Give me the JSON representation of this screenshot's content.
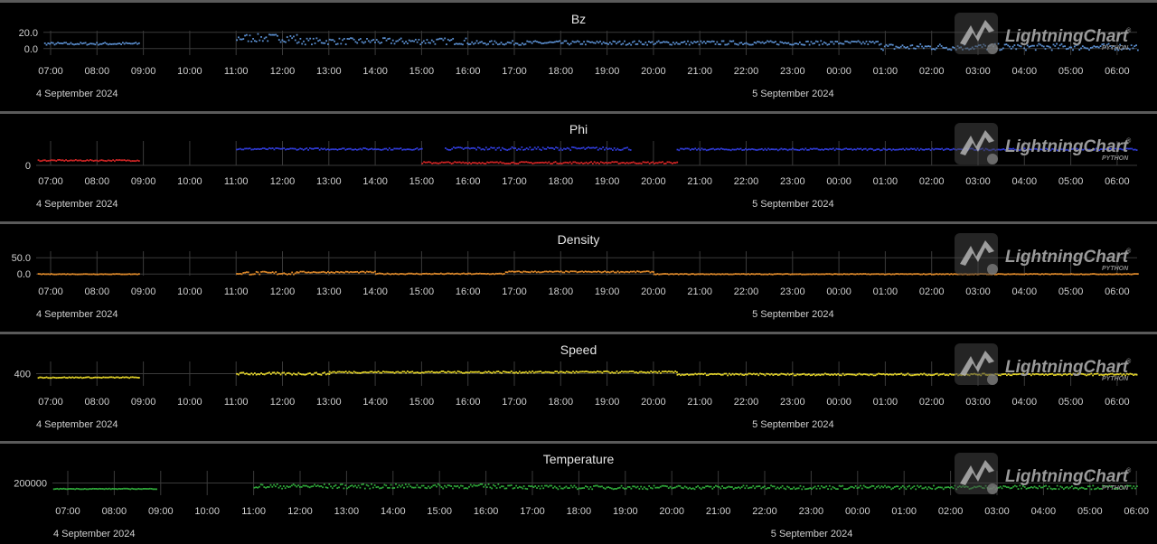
{
  "watermark": {
    "brand": "LightningChart",
    "sub": "PYTHON",
    "reg": "®"
  },
  "x_ticks": [
    "07:00",
    "08:00",
    "09:00",
    "10:00",
    "11:00",
    "12:00",
    "13:00",
    "14:00",
    "15:00",
    "16:00",
    "17:00",
    "18:00",
    "19:00",
    "20:00",
    "21:00",
    "22:00",
    "23:00",
    "00:00",
    "01:00",
    "02:00",
    "03:00",
    "04:00",
    "05:00",
    "06:00"
  ],
  "dates": {
    "day1": "4 September 2024",
    "day2": "5 September 2024"
  },
  "chart_data": [
    {
      "type": "scatter",
      "title": "Bz",
      "color": "#5b8fd0",
      "y_ticks": [
        "20.0",
        "0.0"
      ],
      "ylim": [
        -8,
        22
      ],
      "x_range_hours": [
        6.3,
        30.5
      ],
      "segments": [
        {
          "start": 6.3,
          "end": 8.9,
          "base": 7,
          "noise": 1.5
        },
        {
          "start": 11.0,
          "end": 12.3,
          "base": 14,
          "noise": 5
        },
        {
          "start": 12.3,
          "end": 16.0,
          "base": 10,
          "noise": 4
        },
        {
          "start": 16.0,
          "end": 24.9,
          "base": 8,
          "noise": 2.5
        },
        {
          "start": 24.9,
          "end": 30.5,
          "base": 3,
          "noise": 4
        }
      ]
    },
    {
      "type": "scatter",
      "title": "Phi",
      "color": "#2f3bd6",
      "y_ticks": [
        "0"
      ],
      "ylim": [
        0,
        320
      ],
      "x_range_hours": [
        6.3,
        30.5
      ],
      "secondary_color": "#d62626",
      "segments": [
        {
          "start": 6.3,
          "end": 8.9,
          "base": 75,
          "noise": 8,
          "alt": true
        },
        {
          "start": 11.0,
          "end": 15.0,
          "base": 225,
          "noise": 12
        },
        {
          "start": 15.0,
          "end": 20.5,
          "base": 45,
          "noise": 12,
          "alt": true
        },
        {
          "start": 15.5,
          "end": 19.5,
          "base": 230,
          "noise": 20
        },
        {
          "start": 20.5,
          "end": 30.5,
          "base": 220,
          "noise": 12
        }
      ]
    },
    {
      "type": "scatter",
      "title": "Density",
      "color": "#e08a2a",
      "y_ticks": [
        "50.0",
        "0.0"
      ],
      "ylim": [
        -5,
        70
      ],
      "x_range_hours": [
        6.3,
        30.5
      ],
      "segments": [
        {
          "start": 6.3,
          "end": 8.9,
          "base": 2,
          "noise": 0.8
        },
        {
          "start": 11.0,
          "end": 12.3,
          "base": 5,
          "noise": 5
        },
        {
          "start": 12.3,
          "end": 14.0,
          "base": 8,
          "noise": 2
        },
        {
          "start": 14.0,
          "end": 16.8,
          "base": 3,
          "noise": 1.5
        },
        {
          "start": 16.8,
          "end": 20.0,
          "base": 9,
          "noise": 2
        },
        {
          "start": 20.0,
          "end": 30.5,
          "base": 2,
          "noise": 1
        }
      ]
    },
    {
      "type": "scatter",
      "title": "Speed",
      "color": "#e6d62a",
      "y_ticks": [
        "400"
      ],
      "ylim": [
        320,
        480
      ],
      "x_range_hours": [
        6.3,
        30.5
      ],
      "segments": [
        {
          "start": 6.3,
          "end": 8.9,
          "base": 380,
          "noise": 3
        },
        {
          "start": 11.0,
          "end": 13.0,
          "base": 405,
          "noise": 8
        },
        {
          "start": 13.0,
          "end": 20.5,
          "base": 415,
          "noise": 6
        },
        {
          "start": 20.5,
          "end": 30.5,
          "base": 400,
          "noise": 6
        }
      ]
    },
    {
      "type": "scatter",
      "title": "Temperature",
      "color": "#2fa83a",
      "y_ticks": [
        "200000"
      ],
      "ylim": [
        80000,
        320000
      ],
      "x_range_hours": [
        6.3,
        30.5
      ],
      "segments": [
        {
          "start": 6.3,
          "end": 8.9,
          "base": 150000,
          "noise": 3000
        },
        {
          "start": 11.0,
          "end": 16.8,
          "base": 175000,
          "noise": 22000
        },
        {
          "start": 16.8,
          "end": 30.5,
          "base": 165000,
          "noise": 18000
        }
      ]
    }
  ]
}
